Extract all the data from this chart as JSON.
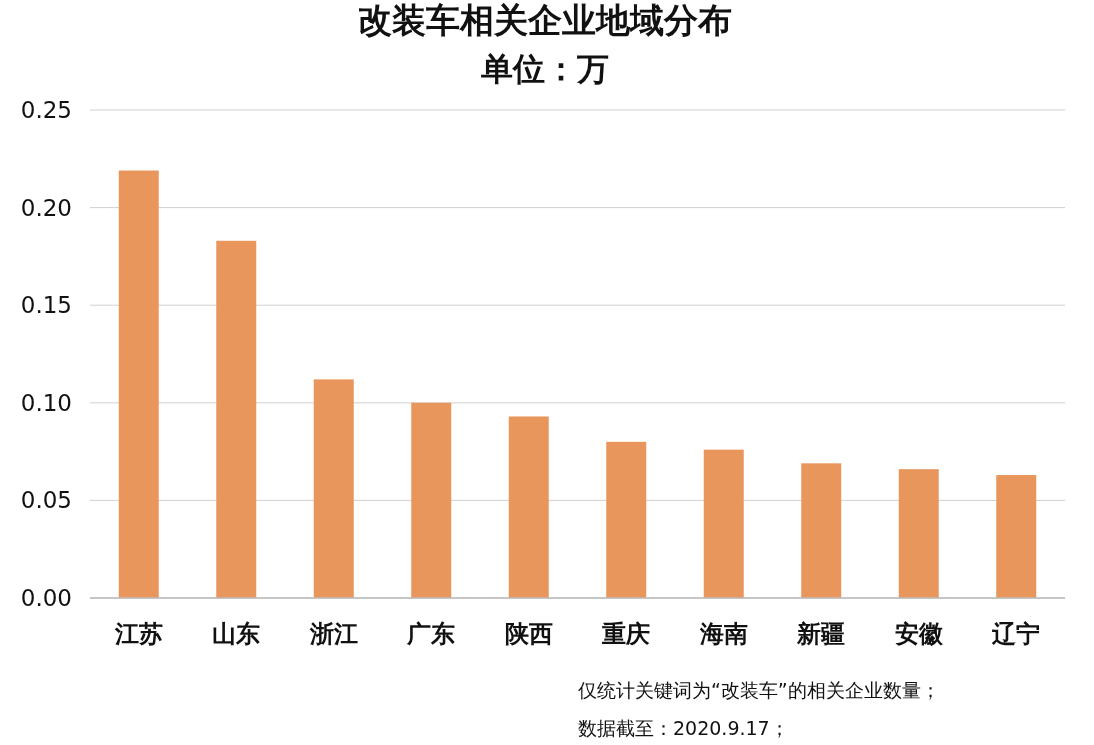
{
  "chart_data": {
    "type": "bar",
    "title": "改装车相关企业地域分布",
    "subtitle": "单位：万",
    "categories": [
      "江苏",
      "山东",
      "浙江",
      "广东",
      "陕西",
      "重庆",
      "海南",
      "新疆",
      "安徽",
      "辽宁"
    ],
    "values": [
      0.219,
      0.183,
      0.112,
      0.1,
      0.093,
      0.08,
      0.076,
      0.069,
      0.066,
      0.063
    ],
    "color": "#e9965c",
    "ylim": [
      0,
      0.25
    ],
    "yticks": [
      {
        "value": 0,
        "label": "0.00"
      },
      {
        "value": 0.05,
        "label": "0.05"
      },
      {
        "value": 0.1,
        "label": "0.10"
      },
      {
        "value": 0.15,
        "label": "0.15"
      },
      {
        "value": 0.2,
        "label": "0.20"
      },
      {
        "value": 0.25,
        "label": "0.25"
      }
    ],
    "grid": "y",
    "annotations": [
      "仅统计关键词为“改装车”的相关企业数量；",
      "数据截至：2020.9.17；"
    ]
  }
}
